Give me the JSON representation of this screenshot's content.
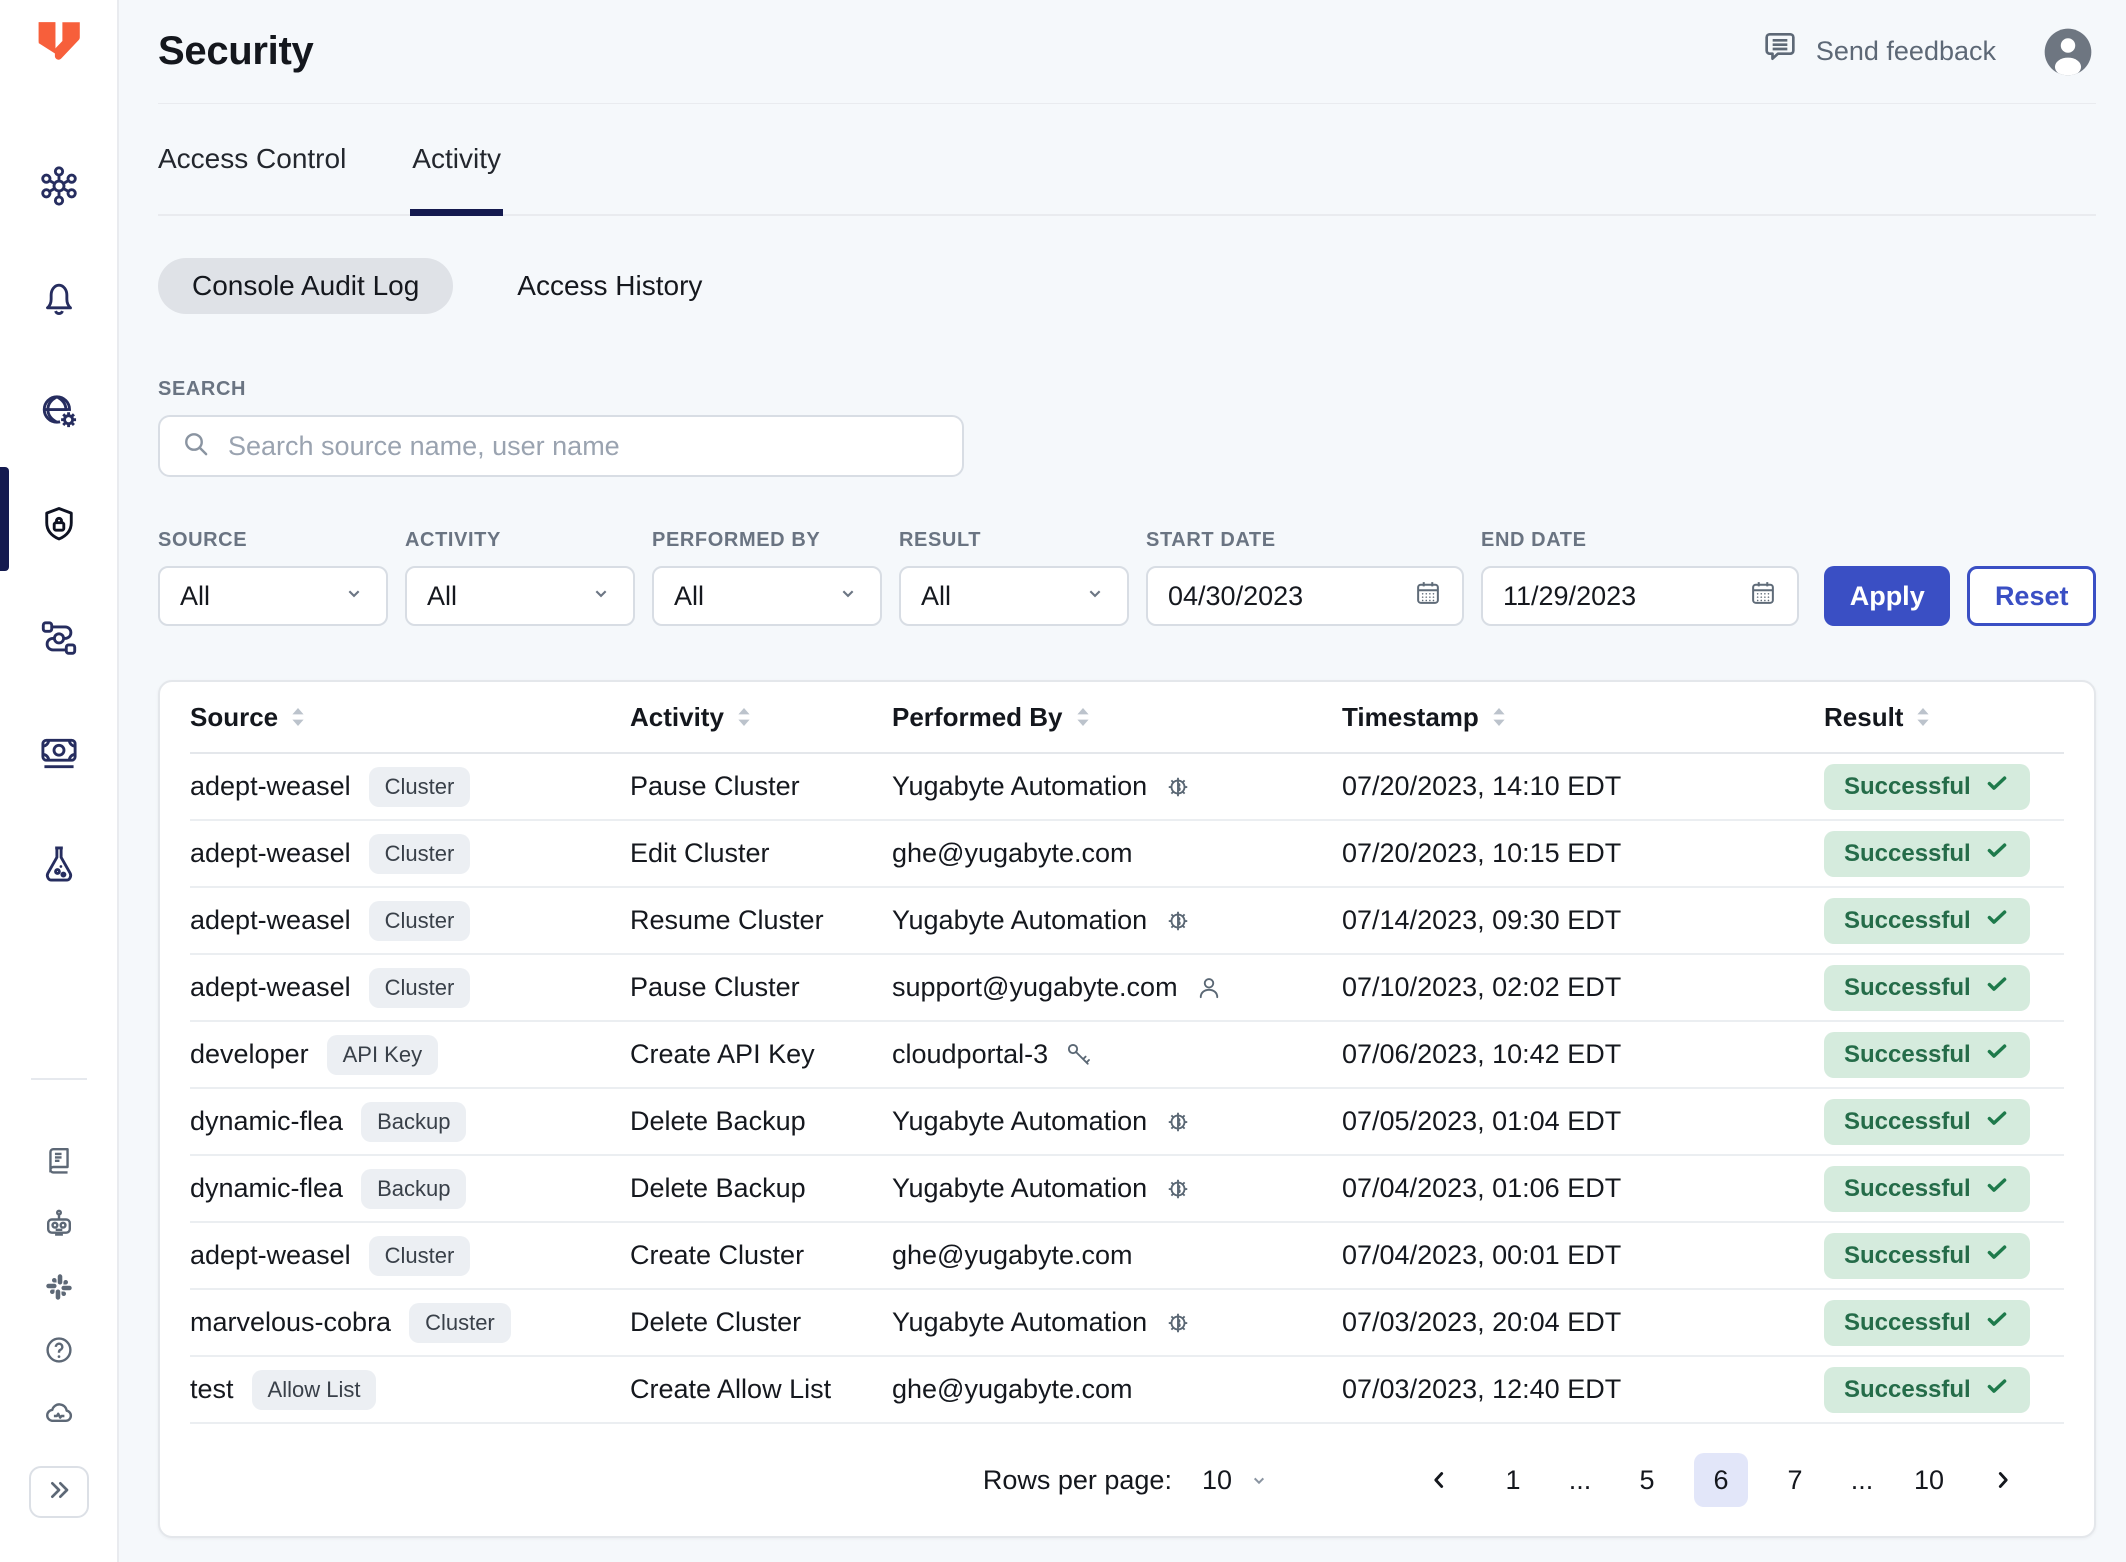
{
  "colors": {
    "brand_orange": "#F75F3B",
    "accent_blue": "#3A4FC4",
    "active_navy": "#141A4F",
    "success_bg": "#D5EBDD",
    "success_text": "#256C49",
    "page_bg": "#F5F8FB"
  },
  "sidebar": {
    "top_icons": [
      "clusters",
      "alerts",
      "network",
      "security",
      "integrations",
      "billing",
      "labs"
    ],
    "active_item": "security",
    "bottom_icons": [
      "docs",
      "chatbot",
      "slack",
      "help",
      "cloud-status"
    ],
    "expand_icon": "expand"
  },
  "header": {
    "title": "Security",
    "send_feedback_label": "Send feedback"
  },
  "tabs": {
    "items": [
      {
        "label": "Access Control"
      },
      {
        "label": "Activity"
      }
    ],
    "active": "Activity"
  },
  "subtabs": {
    "items": [
      {
        "label": "Console Audit Log"
      },
      {
        "label": "Access History"
      }
    ],
    "active": "Console Audit Log"
  },
  "search": {
    "label": "SEARCH",
    "placeholder": "Search source name, user name",
    "value": ""
  },
  "filters": {
    "source": {
      "label": "SOURCE",
      "value": "All"
    },
    "activity": {
      "label": "ACTIVITY",
      "value": "All"
    },
    "performed_by": {
      "label": "PERFORMED BY",
      "value": "All"
    },
    "result": {
      "label": "RESULT",
      "value": "All"
    },
    "start_date": {
      "label": "START DATE",
      "value": "04/30/2023"
    },
    "end_date": {
      "label": "END DATE",
      "value": "11/29/2023"
    },
    "apply_label": "Apply",
    "reset_label": "Reset"
  },
  "table": {
    "columns": [
      "Source",
      "Activity",
      "Performed By",
      "Timestamp",
      "Result"
    ],
    "rows": [
      {
        "source": "adept-weasel",
        "source_badge": "Cluster",
        "activity": "Pause Cluster",
        "performed_by": "Yugabyte Automation",
        "performer_icon": "automation",
        "timestamp": "07/20/2023, 14:10 EDT",
        "result": "Successful"
      },
      {
        "source": "adept-weasel",
        "source_badge": "Cluster",
        "activity": "Edit Cluster",
        "performed_by": "ghe@yugabyte.com",
        "performer_icon": "none",
        "timestamp": "07/20/2023, 10:15 EDT",
        "result": "Successful"
      },
      {
        "source": "adept-weasel",
        "source_badge": "Cluster",
        "activity": "Resume Cluster",
        "performed_by": "Yugabyte Automation",
        "performer_icon": "automation",
        "timestamp": "07/14/2023, 09:30 EDT",
        "result": "Successful"
      },
      {
        "source": "adept-weasel",
        "source_badge": "Cluster",
        "activity": "Pause Cluster",
        "performed_by": "support@yugabyte.com",
        "performer_icon": "user",
        "timestamp": "07/10/2023, 02:02 EDT",
        "result": "Successful"
      },
      {
        "source": "developer",
        "source_badge": "API Key",
        "activity": "Create API Key",
        "performed_by": "cloudportal-3",
        "performer_icon": "key",
        "timestamp": "07/06/2023, 10:42 EDT",
        "result": "Successful"
      },
      {
        "source": "dynamic-flea",
        "source_badge": "Backup",
        "activity": "Delete Backup",
        "performed_by": "Yugabyte Automation",
        "performer_icon": "automation",
        "timestamp": "07/05/2023, 01:04 EDT",
        "result": "Successful"
      },
      {
        "source": "dynamic-flea",
        "source_badge": "Backup",
        "activity": "Delete Backup",
        "performed_by": "Yugabyte Automation",
        "performer_icon": "automation",
        "timestamp": "07/04/2023, 01:06 EDT",
        "result": "Successful"
      },
      {
        "source": "adept-weasel",
        "source_badge": "Cluster",
        "activity": "Create Cluster",
        "performed_by": "ghe@yugabyte.com",
        "performer_icon": "none",
        "timestamp": "07/04/2023, 00:01 EDT",
        "result": "Successful"
      },
      {
        "source": "marvelous-cobra",
        "source_badge": "Cluster",
        "activity": "Delete Cluster",
        "performed_by": "Yugabyte Automation",
        "performer_icon": "automation",
        "timestamp": "07/03/2023, 20:04 EDT",
        "result": "Successful"
      },
      {
        "source": "test",
        "source_badge": "Allow List",
        "activity": "Create Allow List",
        "performed_by": "ghe@yugabyte.com",
        "performer_icon": "none",
        "timestamp": "07/03/2023, 12:40 EDT",
        "result": "Successful"
      }
    ]
  },
  "pagination": {
    "rows_per_page_label": "Rows per page:",
    "rows_per_page_value": "10",
    "pages": [
      "1",
      "...",
      "5",
      "6",
      "7",
      "...",
      "10"
    ],
    "current_page": "6"
  }
}
